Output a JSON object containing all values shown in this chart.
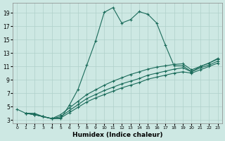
{
  "xlabel": "Humidex (Indice chaleur)",
  "background_color": "#cde8e3",
  "grid_color": "#afd0ca",
  "line_color": "#1a6b5a",
  "xlim": [
    -0.5,
    23.5
  ],
  "ylim": [
    2.5,
    20.5
  ],
  "xticks": [
    0,
    1,
    2,
    3,
    4,
    5,
    6,
    7,
    8,
    9,
    10,
    11,
    12,
    13,
    14,
    15,
    16,
    17,
    18,
    19,
    20,
    21,
    22,
    23
  ],
  "yticks": [
    3,
    5,
    7,
    9,
    11,
    13,
    15,
    17,
    19
  ],
  "main_x": [
    0,
    1,
    2,
    3,
    4,
    5,
    6,
    7,
    8,
    9,
    10,
    11,
    12,
    13,
    14,
    15,
    16,
    17,
    18,
    19,
    20,
    21,
    22,
    23
  ],
  "main_y": [
    4.6,
    4.0,
    4.0,
    3.5,
    3.2,
    3.2,
    5.2,
    7.6,
    11.2,
    14.8,
    19.1,
    19.8,
    17.5,
    18.0,
    19.2,
    18.8,
    17.5,
    14.2,
    11.1,
    11.1,
    10.2,
    11.0,
    11.5,
    12.2
  ],
  "linear_series": [
    {
      "x": [
        1,
        2,
        3,
        4,
        5,
        6,
        7,
        8,
        9,
        10,
        11,
        12,
        13,
        14,
        15,
        16,
        17,
        18,
        19,
        20,
        21,
        22,
        23
      ],
      "y": [
        4.0,
        3.8,
        3.5,
        3.2,
        3.8,
        4.8,
        5.8,
        6.8,
        7.5,
        8.2,
        8.8,
        9.3,
        9.8,
        10.2,
        10.6,
        10.9,
        11.1,
        11.3,
        11.4,
        10.5,
        11.0,
        11.5,
        12.1
      ]
    },
    {
      "x": [
        1,
        2,
        3,
        4,
        5,
        6,
        7,
        8,
        9,
        10,
        11,
        12,
        13,
        14,
        15,
        16,
        17,
        18,
        19,
        20,
        21,
        22,
        23
      ],
      "y": [
        4.0,
        3.8,
        3.5,
        3.2,
        3.5,
        4.4,
        5.3,
        6.2,
        6.8,
        7.4,
        7.9,
        8.4,
        8.8,
        9.2,
        9.7,
        10.0,
        10.3,
        10.6,
        10.8,
        10.2,
        10.8,
        11.2,
        11.8
      ]
    },
    {
      "x": [
        1,
        2,
        3,
        4,
        5,
        6,
        7,
        8,
        9,
        10,
        11,
        12,
        13,
        14,
        15,
        16,
        17,
        18,
        19,
        20,
        21,
        22,
        23
      ],
      "y": [
        4.0,
        3.8,
        3.5,
        3.2,
        3.3,
        4.1,
        4.9,
        5.7,
        6.3,
        6.8,
        7.3,
        7.8,
        8.2,
        8.6,
        9.1,
        9.4,
        9.7,
        10.0,
        10.2,
        10.0,
        10.5,
        11.0,
        11.5
      ]
    }
  ]
}
